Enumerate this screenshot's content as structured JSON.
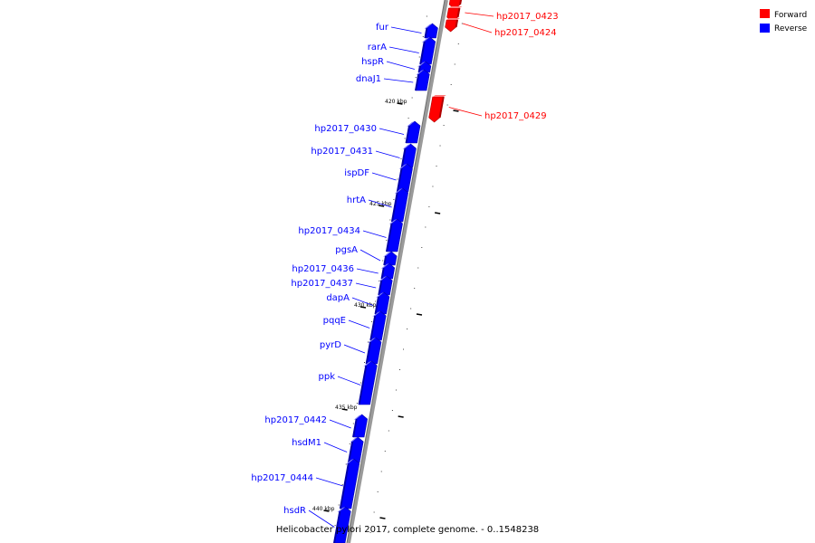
{
  "legend": {
    "items": [
      {
        "label": "Forward",
        "color": "#ff0000"
      },
      {
        "label": "Reverse",
        "color": "#0000ff"
      }
    ]
  },
  "caption": "Helicobacter pylori 2017, complete genome. - 0..1548238",
  "ticks": [
    {
      "label": "420 kbp"
    },
    {
      "label": "425 kbp"
    },
    {
      "label": "430 kbp"
    },
    {
      "label": "435 kbp"
    },
    {
      "label": "440 kbp"
    }
  ],
  "genes": {
    "forward": [
      "hp2017_0423",
      "hp2017_0424",
      "hp2017_0429"
    ],
    "reverse": [
      "fur",
      "rarA",
      "hspR",
      "dnaJ1",
      "hp2017_0430",
      "hp2017_0431",
      "ispDF",
      "hrtA",
      "hp2017_0434",
      "pgsA",
      "hp2017_0436",
      "hp2017_0437",
      "dapA",
      "pqqE",
      "pyrD",
      "ppk",
      "hp2017_0442",
      "hsdM1",
      "hp2017_0444",
      "hsdR"
    ]
  }
}
